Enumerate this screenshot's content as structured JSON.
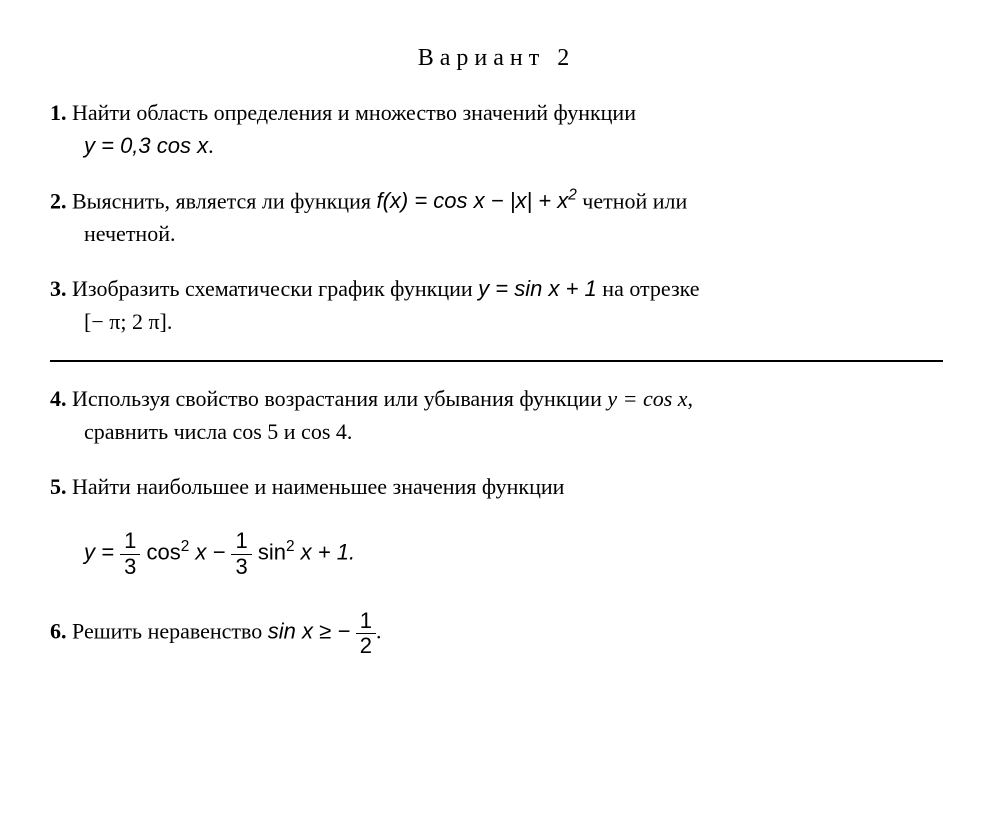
{
  "title": "Вариант   2",
  "p1": {
    "num": "1.",
    "text_a": "Найти   область   определения   и   множество   значений   функции",
    "eq": "y = 0,3 cos x",
    "period": "."
  },
  "p2": {
    "num": "2.",
    "text_a": "Выяснить, является ли функция  ",
    "eq": "f(x) = cos x − |x| + x",
    "sup": "2",
    "text_b": "   четной или",
    "text_c": "нечетной."
  },
  "p3": {
    "num": "3.",
    "text_a": "Изобразить схематически график функции ",
    "eq": "y = sin x + 1",
    "text_b": " на отрезке",
    "interval": "[− π; 2 π]."
  },
  "p4": {
    "num": "4.",
    "text_a": "Используя свойство возрастания или убывания функции ",
    "eq": "y = cos x",
    "comma": ",",
    "text_b": "сравнить числа cos 5 и cos 4."
  },
  "p5": {
    "num": "5.",
    "text_a": "Найти наибольшее  и  наименьшее  значения  функции",
    "eq_y": "y =",
    "frac1_n": "1",
    "frac1_d": "3",
    "mid1": "cos",
    "sup1": "2",
    "mid1b": " x −",
    "frac2_n": "1",
    "frac2_d": "3",
    "mid2": "sin",
    "sup2": "2",
    "tail": " x + 1."
  },
  "p6": {
    "num": "6.",
    "text_a": "Решить неравенство  ",
    "eq": "sin x ≥ −",
    "frac_n": "1",
    "frac_d": "2",
    "period": "."
  }
}
